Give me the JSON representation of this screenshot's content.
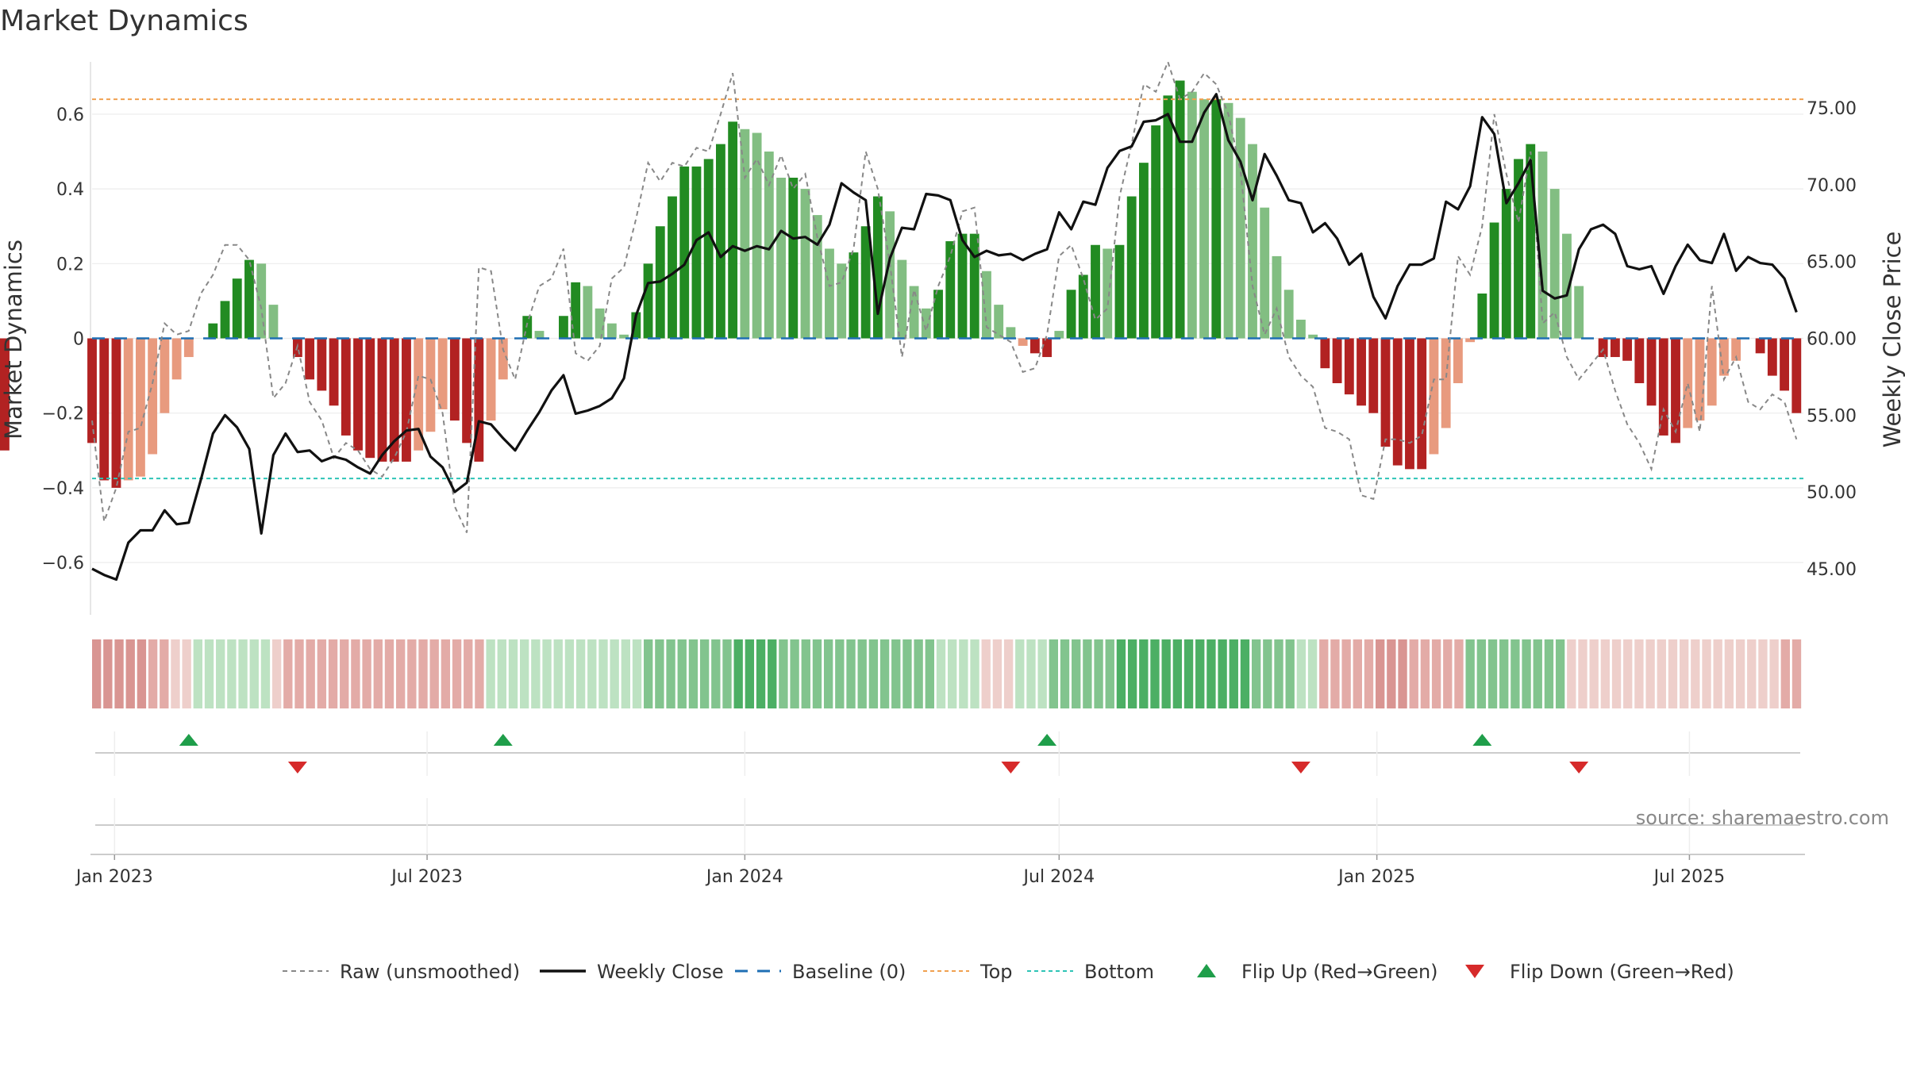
{
  "chart_data": {
    "type": "bar",
    "title": "Market Dynamics",
    "ylabel": "Market Dynamics",
    "y2label": "Weekly Close Price",
    "ylim": [
      -0.74,
      0.74
    ],
    "y2lim": [
      42.0,
      78.0
    ],
    "yticks": [
      "0.6",
      "0.4",
      "0.2",
      "0",
      "−0.2",
      "−0.4",
      "−0.6"
    ],
    "yticks_values": [
      0.6,
      0.4,
      0.2,
      0,
      -0.2,
      -0.4,
      -0.6
    ],
    "y2ticks": [
      "75.00",
      "70.00",
      "65.00",
      "60.00",
      "55.00",
      "50.00",
      "45.00"
    ],
    "y2ticks_values": [
      75,
      70,
      65,
      60,
      55,
      50,
      45
    ],
    "x_start": "2022-12-19",
    "x_end": "2025-09-05",
    "xticks": [
      {
        "date": "2023-01-01",
        "label": "Jan 2023"
      },
      {
        "date": "2023-07-01",
        "label": "Jul 2023"
      },
      {
        "date": "2024-01-01",
        "label": "Jan 2024"
      },
      {
        "date": "2024-07-01",
        "label": "Jul 2024"
      },
      {
        "date": "2025-01-01",
        "label": "Jan 2025"
      },
      {
        "date": "2025-07-01",
        "label": "Jul 2025"
      }
    ],
    "week_dates": [
      "2022-12-19",
      "2022-12-26",
      "2023-01-02",
      "2023-01-09",
      "2023-01-16",
      "2023-01-23",
      "2023-01-30",
      "2023-02-06",
      "2023-02-13",
      "2023-02-20",
      "2023-02-27",
      "2023-03-06",
      "2023-03-13",
      "2023-03-20",
      "2023-03-27",
      "2023-04-03",
      "2023-04-10",
      "2023-04-17",
      "2023-04-24",
      "2023-05-01",
      "2023-05-08",
      "2023-05-15",
      "2023-05-22",
      "2023-05-29",
      "2023-06-05",
      "2023-06-12",
      "2023-06-19",
      "2023-06-26",
      "2023-07-03",
      "2023-07-10",
      "2023-07-17",
      "2023-07-24",
      "2023-07-31",
      "2023-08-07",
      "2023-08-14",
      "2023-08-21",
      "2023-08-28",
      "2023-09-04",
      "2023-09-11",
      "2023-09-18",
      "2023-09-25",
      "2023-10-02",
      "2023-10-09",
      "2023-10-16",
      "2023-10-23",
      "2023-10-30",
      "2023-11-06",
      "2023-11-13",
      "2023-11-20",
      "2023-11-27",
      "2023-12-04",
      "2023-12-11",
      "2023-12-18",
      "2023-12-25",
      "2024-01-01",
      "2024-01-08",
      "2024-01-15",
      "2024-01-22",
      "2024-01-29",
      "2024-02-05",
      "2024-02-12",
      "2024-02-19",
      "2024-02-26",
      "2024-03-04",
      "2024-03-11",
      "2024-03-18",
      "2024-03-25",
      "2024-04-01",
      "2024-04-08",
      "2024-04-15",
      "2024-04-22",
      "2024-04-29",
      "2024-05-06",
      "2024-05-13",
      "2024-05-20",
      "2024-05-27",
      "2024-06-03",
      "2024-06-10",
      "2024-06-17",
      "2024-06-24",
      "2024-07-01",
      "2024-07-08",
      "2024-07-15",
      "2024-07-22",
      "2024-07-29",
      "2024-08-05",
      "2024-08-12",
      "2024-08-19",
      "2024-08-26",
      "2024-09-02",
      "2024-09-09",
      "2024-09-16",
      "2024-09-23",
      "2024-09-30",
      "2024-10-07",
      "2024-10-14",
      "2024-10-21",
      "2024-10-28",
      "2024-11-04",
      "2024-11-11",
      "2024-11-18",
      "2024-11-25",
      "2024-12-02",
      "2024-12-09",
      "2024-12-16",
      "2024-12-23",
      "2024-12-30",
      "2025-01-06",
      "2025-01-13",
      "2025-01-20",
      "2025-01-27",
      "2025-02-03",
      "2025-02-10",
      "2025-02-17",
      "2025-02-24",
      "2025-03-03",
      "2025-03-10",
      "2025-03-17",
      "2025-03-24",
      "2025-03-31",
      "2025-04-07",
      "2025-04-14",
      "2025-04-21",
      "2025-04-28",
      "2025-05-05",
      "2025-05-12",
      "2025-05-19",
      "2025-05-26",
      "2025-06-02",
      "2025-06-09",
      "2025-06-16",
      "2025-06-23",
      "2025-06-30",
      "2025-07-07",
      "2025-07-14",
      "2025-07-21",
      "2025-07-28",
      "2025-08-04",
      "2025-08-11",
      "2025-08-18",
      "2025-08-25",
      "2025-09-01"
    ],
    "series": [
      {
        "name": "Market Dynamics (histogram)",
        "values": [
          -0.28,
          -0.38,
          -0.4,
          -0.38,
          -0.37,
          -0.31,
          -0.2,
          -0.11,
          -0.05,
          0.0,
          0.04,
          0.1,
          0.16,
          0.21,
          0.2,
          0.09,
          0.0,
          -0.05,
          -0.11,
          -0.14,
          -0.18,
          -0.26,
          -0.3,
          -0.32,
          -0.33,
          -0.33,
          -0.33,
          -0.3,
          -0.25,
          -0.19,
          -0.22,
          -0.28,
          -0.33,
          -0.22,
          -0.11,
          0.0,
          0.06,
          0.02,
          0.0,
          0.06,
          0.15,
          0.14,
          0.08,
          0.04,
          0.01,
          0.07,
          0.2,
          0.3,
          0.38,
          0.46,
          0.46,
          0.48,
          0.52,
          0.58,
          0.56,
          0.55,
          0.5,
          0.43,
          0.43,
          0.4,
          0.33,
          0.24,
          0.2,
          0.23,
          0.3,
          0.38,
          0.34,
          0.21,
          0.14,
          0.08,
          0.13,
          0.26,
          0.28,
          0.28,
          0.18,
          0.09,
          0.03,
          -0.02,
          -0.04,
          -0.05,
          0.02,
          0.13,
          0.17,
          0.25,
          0.24,
          0.25,
          0.38,
          0.47,
          0.57,
          0.65,
          0.69,
          0.66,
          0.64,
          0.64,
          0.63,
          0.59,
          0.52,
          0.35,
          0.22,
          0.13,
          0.05,
          0.01,
          -0.08,
          -0.12,
          -0.15,
          -0.18,
          -0.2,
          -0.29,
          -0.34,
          -0.35,
          -0.35,
          -0.31,
          -0.24,
          -0.12,
          -0.01,
          0.12,
          0.31,
          0.4,
          0.48,
          0.52,
          0.5,
          0.4,
          0.28,
          0.14,
          0.0,
          -0.05,
          -0.05,
          -0.06,
          -0.12,
          -0.18,
          -0.26,
          -0.28,
          -0.24,
          -0.22,
          -0.18,
          -0.1,
          -0.06,
          0.0,
          -0.04,
          -0.1,
          -0.14,
          -0.2,
          -0.22,
          -0.3
        ]
      },
      {
        "name": "Raw (unsmoothed)",
        "values": [
          -0.22,
          -0.49,
          -0.4,
          -0.25,
          -0.24,
          -0.12,
          0.04,
          0.01,
          0.02,
          0.12,
          0.17,
          0.25,
          0.25,
          0.21,
          0.08,
          -0.16,
          -0.12,
          -0.02,
          -0.17,
          -0.22,
          -0.32,
          -0.28,
          -0.3,
          -0.35,
          -0.37,
          -0.32,
          -0.25,
          -0.1,
          -0.11,
          -0.2,
          -0.45,
          -0.52,
          0.19,
          0.18,
          -0.03,
          -0.11,
          0.04,
          0.14,
          0.16,
          0.24,
          -0.04,
          -0.06,
          -0.02,
          0.16,
          0.19,
          0.32,
          0.47,
          0.42,
          0.47,
          0.46,
          0.51,
          0.5,
          0.6,
          0.71,
          0.43,
          0.48,
          0.41,
          0.49,
          0.4,
          0.44,
          0.27,
          0.14,
          0.15,
          0.24,
          0.5,
          0.4,
          0.2,
          -0.05,
          0.13,
          0.02,
          0.14,
          0.22,
          0.34,
          0.35,
          0.03,
          0.01,
          -0.01,
          -0.09,
          -0.08,
          0.01,
          0.22,
          0.25,
          0.16,
          0.05,
          0.08,
          0.38,
          0.52,
          0.68,
          0.66,
          0.74,
          0.64,
          0.66,
          0.71,
          0.68,
          0.6,
          0.45,
          0.14,
          0.01,
          0.08,
          -0.05,
          -0.1,
          -0.13,
          -0.24,
          -0.25,
          -0.27,
          -0.42,
          -0.43,
          -0.27,
          -0.27,
          -0.28,
          -0.26,
          -0.11,
          -0.11,
          0.22,
          0.17,
          0.3,
          0.6,
          0.44,
          0.31,
          0.5,
          0.04,
          0.07,
          -0.05,
          -0.11,
          -0.07,
          -0.03,
          -0.14,
          -0.23,
          -0.28,
          -0.35,
          -0.19,
          -0.25,
          -0.12,
          -0.25,
          0.14,
          -0.11,
          -0.05,
          -0.17,
          -0.19,
          -0.15,
          -0.17,
          -0.27,
          -0.46
        ]
      },
      {
        "name": "Weekly Close",
        "values": [
          45.0,
          44.6,
          44.3,
          46.7,
          47.5,
          47.5,
          48.8,
          47.9,
          48.0,
          50.8,
          53.8,
          55.0,
          54.2,
          52.8,
          47.3,
          52.4,
          53.8,
          52.6,
          52.7,
          52.0,
          52.3,
          52.1,
          51.6,
          51.2,
          52.4,
          53.3,
          54.0,
          54.1,
          52.3,
          51.6,
          50.0,
          50.6,
          54.6,
          54.4,
          53.5,
          52.7,
          54.0,
          55.2,
          56.6,
          57.6,
          55.1,
          55.3,
          55.6,
          56.1,
          57.4,
          61.5,
          63.6,
          63.7,
          64.2,
          64.8,
          66.4,
          66.9,
          65.3,
          66.0,
          65.7,
          66.0,
          65.8,
          67.0,
          66.5,
          66.6,
          66.1,
          67.4,
          70.1,
          69.5,
          69.0,
          61.6,
          65.2,
          67.2,
          67.1,
          69.4,
          69.3,
          69.0,
          66.4,
          65.3,
          65.7,
          65.4,
          65.5,
          65.1,
          65.5,
          65.8,
          68.2,
          67.1,
          68.9,
          68.7,
          71.1,
          72.2,
          72.5,
          74.1,
          74.2,
          74.6,
          72.8,
          72.8,
          74.7,
          75.9,
          72.9,
          71.5,
          69.0,
          72.0,
          70.6,
          69.0,
          68.8,
          66.9,
          67.5,
          66.5,
          64.8,
          65.5,
          62.7,
          61.3,
          63.4,
          64.8,
          64.8,
          65.2,
          68.9,
          68.4,
          69.9,
          74.4,
          73.3,
          68.8,
          70.1,
          71.6,
          63.1,
          62.6,
          62.8,
          65.8,
          67.1,
          67.4,
          66.8,
          64.7,
          64.5,
          64.7,
          62.9,
          64.7,
          66.1,
          65.1,
          64.9,
          66.8,
          64.4,
          65.3,
          64.9,
          64.8,
          63.9,
          61.7,
          61.8,
          60.0
        ]
      }
    ],
    "regime_strip": [
      -3,
      -3,
      -3,
      -3,
      -3,
      -2,
      -2,
      -1,
      -1,
      1,
      1,
      1,
      1,
      1,
      1,
      1,
      -1,
      -2,
      -2,
      -2,
      -2,
      -2,
      -2,
      -2,
      -2,
      -2,
      -2,
      -2,
      -2,
      -2,
      -2,
      -2,
      -2,
      -2,
      -2,
      1,
      1,
      1,
      1,
      1,
      1,
      1,
      1,
      1,
      1,
      1,
      1,
      1,
      1,
      2,
      2,
      2,
      2,
      2,
      2,
      2,
      2,
      3,
      3,
      3,
      3,
      2,
      2,
      2,
      2,
      2,
      2,
      2,
      2,
      2,
      2,
      2,
      2,
      2,
      2,
      1,
      1,
      1,
      1,
      -1,
      -1,
      -1,
      1,
      1,
      1,
      2,
      2,
      2,
      2,
      2,
      2,
      3,
      3,
      3,
      3,
      3,
      3,
      3,
      3,
      3,
      3,
      3,
      3,
      2,
      2,
      2,
      2,
      1,
      1,
      -2,
      -2,
      -2,
      -2,
      -2,
      -3,
      -3,
      -3,
      -2,
      -2,
      -2,
      -2,
      -2,
      2,
      2,
      2,
      2,
      2,
      2,
      2,
      2,
      2,
      -1,
      -1,
      -1,
      -1,
      -1,
      -1,
      -1,
      -1,
      -1,
      -1,
      -1,
      -1,
      -1,
      -1,
      -1,
      -1,
      -1,
      -1,
      -1,
      -2,
      -2
    ],
    "flip_up_dates": [
      "2023-02-13",
      "2023-08-14",
      "2024-06-24",
      "2025-03-03"
    ],
    "flip_down_dates": [
      "2023-04-17",
      "2024-06-03",
      "2024-11-18",
      "2025-04-28"
    ],
    "reference_lines": {
      "top": 0.64,
      "bottom": -0.375,
      "baseline": 0
    },
    "legend": [
      {
        "label": "Raw (unsmoothed)",
        "style": "dotted-gray"
      },
      {
        "label": "Weekly Close",
        "style": "solid-black"
      },
      {
        "label": "Baseline (0)",
        "style": "dashed-blue"
      },
      {
        "label": "Top",
        "style": "dotted-orange"
      },
      {
        "label": "Bottom",
        "style": "dotted-teal"
      },
      {
        "label": "Flip Up (Red→Green)",
        "style": "triangle-up-green"
      },
      {
        "label": "Flip Down (Green→Red)",
        "style": "triangle-down-red"
      }
    ],
    "legend_position": "bottom-center",
    "source_text": "source: sharemaestro.com",
    "colors": {
      "strong_green": "#228b22",
      "light_green": "#82be82",
      "strong_red": "#b22222",
      "light_red": "#e89a7e",
      "raw": "#888888",
      "close": "#111111",
      "baseline": "#1f6fb4",
      "top": "#f0a050",
      "bottom": "#2ec4b6",
      "flip_up": "#1f9e4a",
      "flip_down": "#d62a2a"
    }
  }
}
